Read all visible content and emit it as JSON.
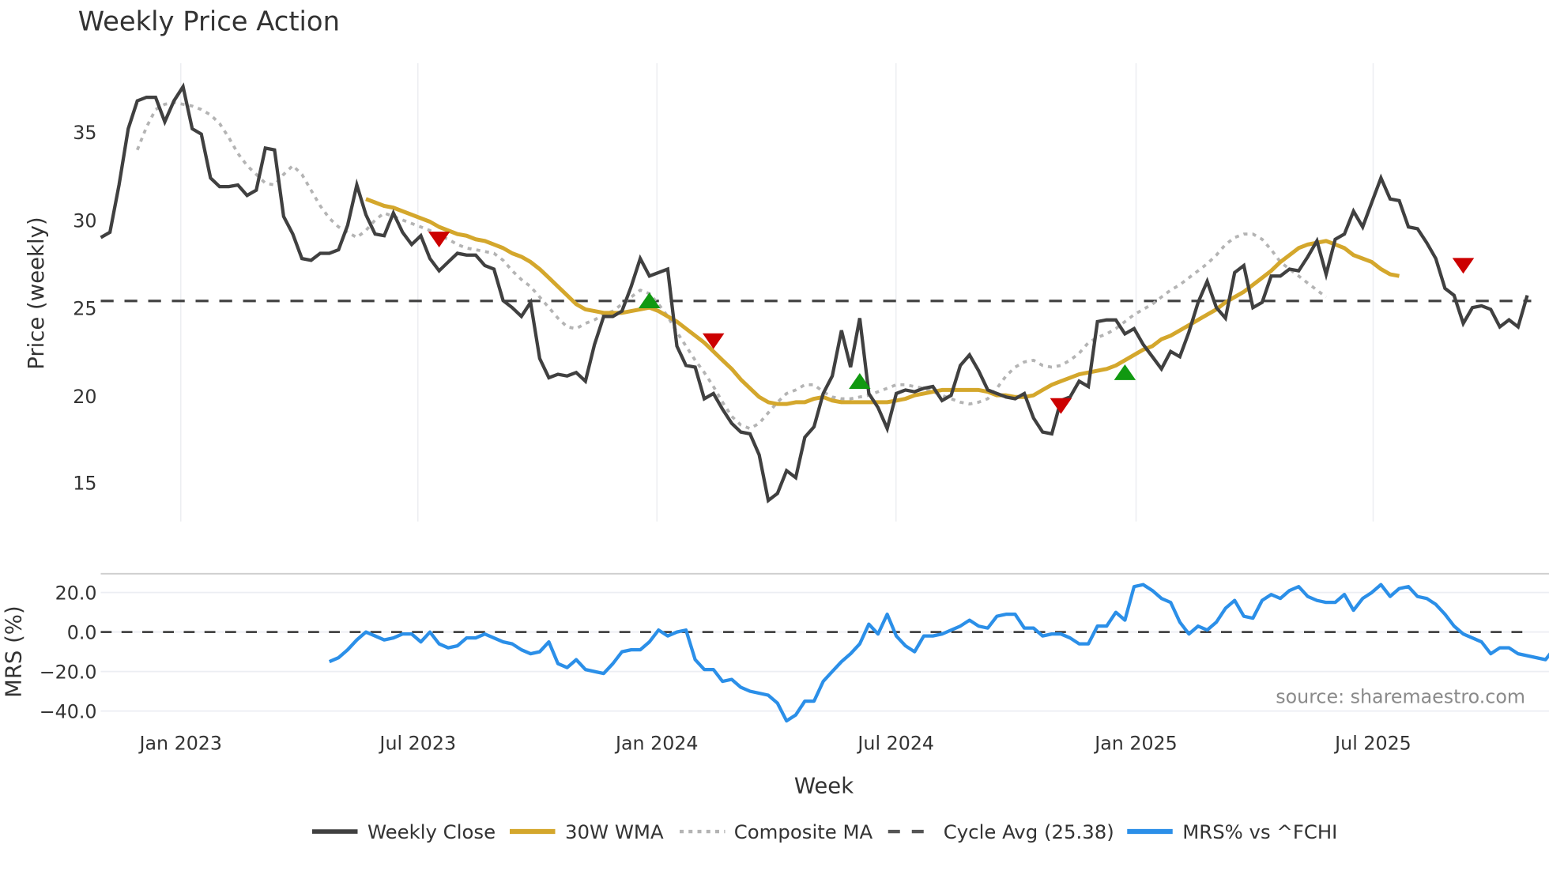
{
  "chart_data": [
    {
      "type": "line",
      "title": "Weekly Price Action",
      "xlabel": "Week",
      "ylabel": "Price (weekly)",
      "ylim": [
        12.5,
        39.5
      ],
      "yticks": [
        15,
        20,
        25,
        30,
        35
      ],
      "xticks": [
        "Jan 2023",
        "Jul 2023",
        "Jan 2024",
        "Jul 2024",
        "Jan 2025",
        "Jul 2025"
      ],
      "grid": "vertical",
      "x_start": "2022-11 (approx)",
      "x_end": "2025-11 (approx)",
      "series": [
        {
          "name": "Weekly Close",
          "color": "#404040",
          "values": [
            29.0,
            29.3,
            32.0,
            35.2,
            36.8,
            37.0,
            37.0,
            35.6,
            36.8,
            37.6,
            35.2,
            34.9,
            32.4,
            31.9,
            31.9,
            32.0,
            31.4,
            31.7,
            34.1,
            34.0,
            30.2,
            29.2,
            27.8,
            27.7,
            28.1,
            28.1,
            28.3,
            29.7,
            32.0,
            30.3,
            29.2,
            29.1,
            30.4,
            29.3,
            28.6,
            29.1,
            27.8,
            27.1,
            27.6,
            28.1,
            28.0,
            28.0,
            27.4,
            27.2,
            25.4,
            25.0,
            24.5,
            25.3,
            22.1,
            21.0,
            21.2,
            21.1,
            21.3,
            20.8,
            22.9,
            24.5,
            24.5,
            24.8,
            26.2,
            27.8,
            26.8,
            27.0,
            27.2,
            22.8,
            21.7,
            21.6,
            19.8,
            20.1,
            19.2,
            18.4,
            17.9,
            17.8,
            16.6,
            14.0,
            14.4,
            15.7,
            15.3,
            17.6,
            18.2,
            20.1,
            21.1,
            23.7,
            21.6,
            24.4,
            20.1,
            19.3,
            18.1,
            20.1,
            20.3,
            20.2,
            20.4,
            20.5,
            19.7,
            20.0,
            21.7,
            22.3,
            21.4,
            20.3,
            20.1,
            19.9,
            19.8,
            20.1,
            18.7,
            17.9,
            17.8,
            19.7,
            19.9,
            20.8,
            20.5,
            24.2,
            24.3,
            24.3,
            23.5,
            23.8,
            22.9,
            22.2,
            21.5,
            22.5,
            22.2,
            23.6,
            25.3,
            26.5,
            25.0,
            24.4,
            27.0,
            27.4,
            25.0,
            25.3,
            26.8,
            26.8,
            27.2,
            27.1,
            27.9,
            28.8,
            26.9,
            28.9,
            29.2,
            30.5,
            29.6,
            31.0,
            32.4,
            31.2,
            31.1,
            29.6,
            29.5,
            28.7,
            27.8,
            26.1,
            25.7,
            24.1,
            25.0,
            25.1,
            24.9,
            23.9,
            24.3,
            23.9,
            25.7
          ]
        },
        {
          "name": "30W WMA",
          "color": "#D4A72C",
          "start_index": 29,
          "values": [
            31.2,
            31.0,
            30.8,
            30.7,
            30.5,
            30.3,
            30.1,
            29.9,
            29.6,
            29.4,
            29.2,
            29.1,
            28.9,
            28.8,
            28.6,
            28.4,
            28.1,
            27.9,
            27.6,
            27.2,
            26.7,
            26.2,
            25.7,
            25.2,
            24.9,
            24.8,
            24.7,
            24.7,
            24.7,
            24.8,
            24.9,
            25.0,
            24.8,
            24.5,
            24.2,
            23.8,
            23.4,
            23.0,
            22.5,
            22.0,
            21.5,
            20.9,
            20.4,
            19.9,
            19.6,
            19.5,
            19.5,
            19.6,
            19.6,
            19.8,
            19.9,
            19.7,
            19.6,
            19.6,
            19.6,
            19.6,
            19.6,
            19.6,
            19.7,
            19.8,
            20.0,
            20.1,
            20.2,
            20.3,
            20.3,
            20.3,
            20.3,
            20.3,
            20.2,
            20.0,
            20.0,
            19.9,
            19.9,
            20.0,
            20.3,
            20.6,
            20.8,
            21.0,
            21.2,
            21.3,
            21.4,
            21.5,
            21.7,
            22.0,
            22.3,
            22.6,
            22.8,
            23.2,
            23.4,
            23.7,
            24.0,
            24.3,
            24.6,
            24.9,
            25.3,
            25.6,
            25.9,
            26.3,
            26.7,
            27.1,
            27.6,
            28.0,
            28.4,
            28.6,
            28.7,
            28.8,
            28.6,
            28.4,
            28.0,
            27.8,
            27.6,
            27.2,
            26.9,
            26.8
          ]
        },
        {
          "name": "Composite MA",
          "color": "#b0b0b0",
          "start_index": 4,
          "values": [
            34.0,
            35.3,
            36.3,
            36.6,
            36.7,
            36.6,
            36.5,
            36.3,
            36.0,
            35.5,
            34.7,
            33.8,
            33.1,
            32.6,
            32.1,
            32.0,
            32.6,
            33.1,
            32.6,
            31.7,
            30.8,
            30.1,
            29.6,
            29.3,
            29.0,
            29.4,
            30.0,
            30.4,
            30.2,
            30.0,
            29.8,
            29.6,
            29.4,
            29.1,
            28.9,
            28.6,
            28.4,
            28.3,
            28.2,
            28.1,
            27.7,
            27.1,
            26.6,
            26.2,
            25.6,
            25.0,
            24.4,
            23.9,
            23.8,
            24.1,
            24.3,
            24.6,
            24.8,
            25.2,
            25.6,
            26.0,
            25.8,
            25.2,
            24.5,
            23.6,
            22.8,
            22.0,
            21.3,
            20.5,
            19.6,
            18.8,
            18.3,
            18.1,
            18.4,
            19.0,
            19.6,
            20.1,
            20.3,
            20.6,
            20.6,
            20.2,
            19.9,
            19.8,
            19.8,
            19.9,
            20.0,
            20.2,
            20.4,
            20.6,
            20.6,
            20.5,
            20.4,
            20.2,
            20.0,
            19.8,
            19.6,
            19.5,
            19.6,
            19.8,
            20.4,
            21.1,
            21.6,
            21.9,
            22.0,
            21.7,
            21.6,
            21.7,
            22.0,
            22.4,
            23.0,
            23.3,
            23.5,
            23.8,
            24.2,
            24.6,
            24.9,
            25.2,
            25.6,
            26.0,
            26.3,
            26.7,
            27.1,
            27.5,
            28.0,
            28.6,
            29.0,
            29.2,
            29.2,
            28.9,
            28.3,
            27.6,
            27.2,
            26.8,
            26.4,
            26.0,
            25.6
          ]
        },
        {
          "name": "Cycle Avg (25.38)",
          "color": "#444444",
          "style": "dashed",
          "value": 25.38
        }
      ],
      "markers": [
        {
          "type": "sell",
          "shape": "triangle-down",
          "color": "#cc0000",
          "index": 37,
          "value": 28.9
        },
        {
          "type": "buy",
          "shape": "triangle-up",
          "color": "#119911",
          "index": 60,
          "value": 25.4
        },
        {
          "type": "sell",
          "shape": "triangle-down",
          "color": "#cc0000",
          "index": 67,
          "value": 23.1
        },
        {
          "type": "buy",
          "shape": "triangle-up",
          "color": "#119911",
          "index": 83,
          "value": 20.8
        },
        {
          "type": "sell",
          "shape": "triangle-down",
          "color": "#cc0000",
          "index": 105,
          "value": 19.4
        },
        {
          "type": "buy",
          "shape": "triangle-up",
          "color": "#119911",
          "index": 112,
          "value": 21.3
        },
        {
          "type": "sell",
          "shape": "triangle-down",
          "color": "#cc0000",
          "index": 149,
          "value": 27.4
        }
      ]
    },
    {
      "type": "line",
      "title": "",
      "xlabel": "Week",
      "ylabel": "MRS (%)",
      "ylim": [
        -46,
        28
      ],
      "yticks": [
        -40.0,
        -20.0,
        0.0,
        20.0
      ],
      "ytick_labels": [
        "−40.0",
        "−20.0",
        "0.0",
        "20.0"
      ],
      "reference_line": {
        "value": 0.0,
        "style": "dashed",
        "color": "#333333"
      },
      "series": [
        {
          "name": "MRS% vs ^FCHI",
          "color": "#2b8fe8",
          "start_index": 25,
          "values": [
            -15,
            -13,
            -9,
            -4,
            0,
            -2,
            -4,
            -3,
            -1,
            -1,
            -5,
            0,
            -6,
            -8,
            -7,
            -3,
            -3,
            -1,
            -3,
            -5,
            -6,
            -9,
            -11,
            -10,
            -5,
            -16,
            -18,
            -14,
            -19,
            -20,
            -21,
            -16,
            -10,
            -9,
            -9,
            -5,
            1,
            -2,
            0,
            1,
            -14,
            -19,
            -19,
            -25,
            -24,
            -28,
            -30,
            -31,
            -32,
            -36,
            -45,
            -42,
            -35,
            -35,
            -25,
            -20,
            -15,
            -11,
            -6,
            4,
            -1,
            9,
            -2,
            -7,
            -10,
            -2,
            -2,
            -1,
            1,
            3,
            6,
            3,
            2,
            8,
            9,
            9,
            2,
            2,
            -2,
            -1,
            -1,
            -3,
            -6,
            -6,
            3,
            3,
            10,
            6,
            23,
            24,
            21,
            17,
            15,
            5,
            -1,
            3,
            1,
            5,
            12,
            16,
            8,
            7,
            16,
            19,
            17,
            21,
            23,
            18,
            16,
            15,
            15,
            19,
            11,
            17,
            20,
            24,
            18,
            22,
            23,
            18,
            17,
            14,
            9,
            3,
            -1,
            -3,
            -5,
            -11,
            -8,
            -8,
            -11,
            -12,
            -13,
            -14,
            -8
          ]
        }
      ]
    }
  ],
  "header": {
    "title": "Weekly Price Action"
  },
  "axes": {
    "price_ylabel": "Price (weekly)",
    "mrs_ylabel": "MRS (%)",
    "xlabel": "Week",
    "price_ticks": [
      "35",
      "30",
      "25",
      "20",
      "15"
    ],
    "mrs_ticks": [
      "20.0",
      "0.0",
      "−20.0",
      "−40.0"
    ],
    "x_ticks": [
      "Jan 2023",
      "Jul 2023",
      "Jan 2024",
      "Jul 2024",
      "Jan 2025",
      "Jul 2025"
    ]
  },
  "legend": {
    "items": [
      {
        "label": "Weekly Close",
        "color": "#404040",
        "style": "solid"
      },
      {
        "label": "30W WMA",
        "color": "#D4A72C",
        "style": "solid"
      },
      {
        "label": "Composite MA",
        "color": "#b0b0b0",
        "style": "dotted"
      },
      {
        "label": "Cycle Avg (25.38)",
        "color": "#555555",
        "style": "dashed"
      },
      {
        "label": "MRS% vs ^FCHI",
        "color": "#2b8fe8",
        "style": "solid"
      }
    ]
  },
  "source": "source: sharemaestro.com"
}
